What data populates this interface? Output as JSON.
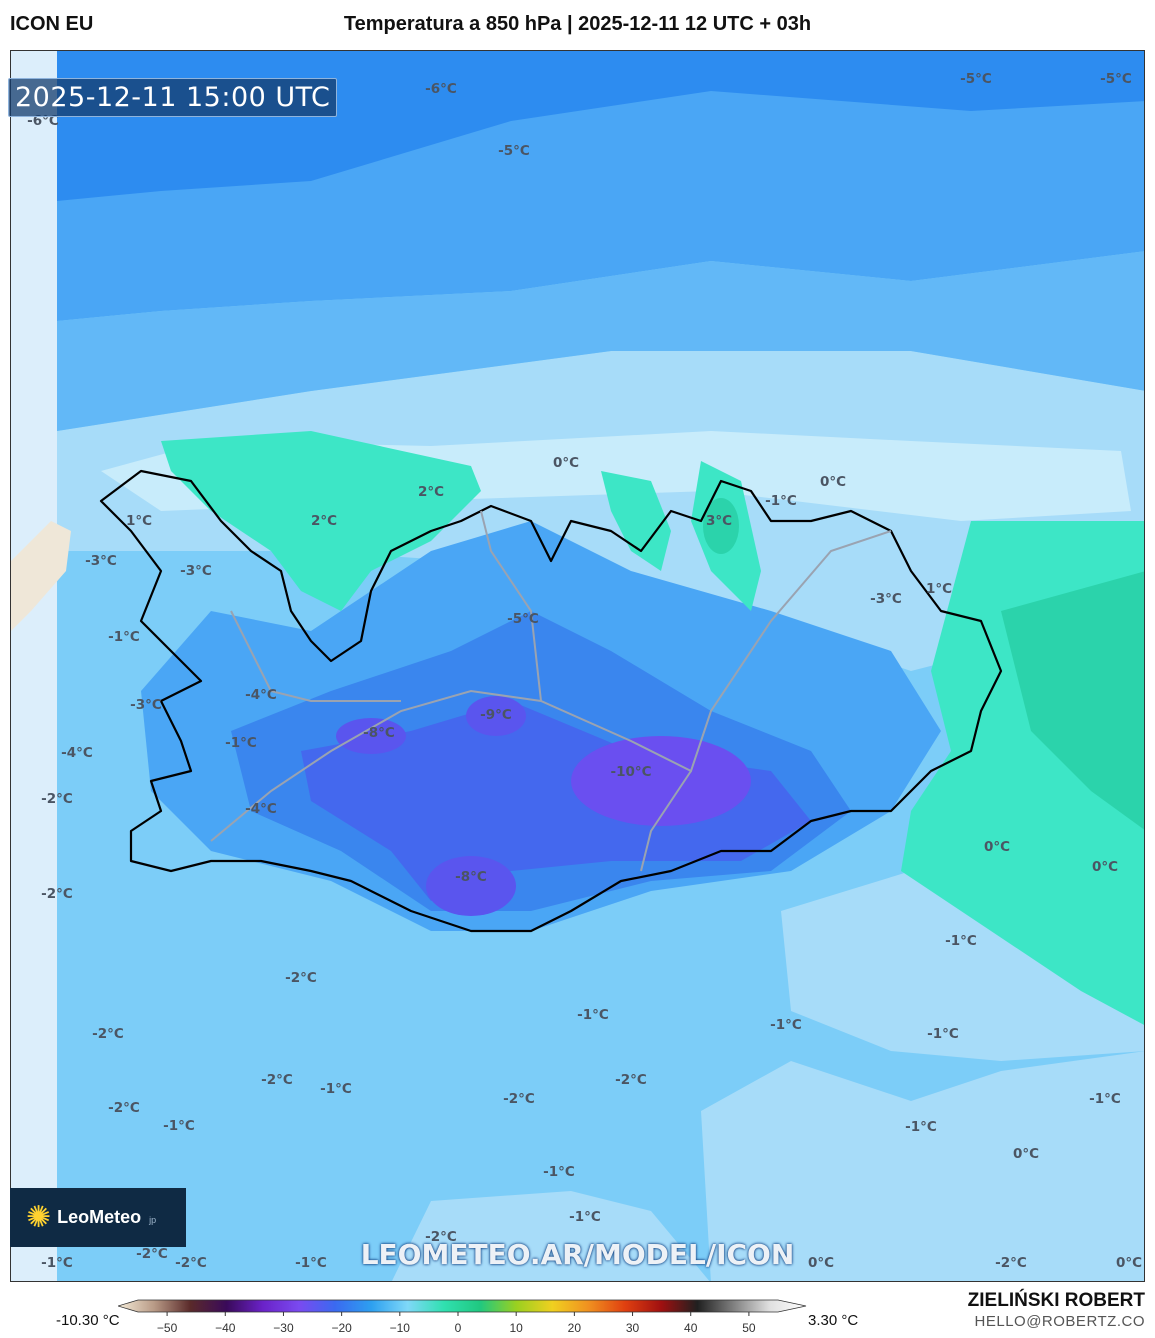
{
  "header": {
    "model": "ICON EU",
    "title": "Temperatura a 850 hPa | 2025-12-11 12 UTC + 03h"
  },
  "map": {
    "valid_time": "2025-12-11 15:00 UTC",
    "watermark": "LEOMETEO.AR/MODEL/ICON",
    "logo_text": "LeoMeteo",
    "logo_sub": "jp",
    "colors": {
      "band_minus6": "#2d8cf0",
      "band_minus5": "#4aa6f5",
      "band_minus2": "#7ccdf8",
      "band_minus1": "#a7dcf9",
      "band_0": "#c8ecfb",
      "band_2": "#3de6c6",
      "band_3": "#2bd3ab",
      "band_minus8": "#5566ee",
      "band_minus10": "#6a4ff0",
      "coast": "#000000",
      "road": "#9aa3b1"
    },
    "labels": [
      {
        "text": "-6°C"
      },
      {
        "text": "-6°C"
      },
      {
        "text": "-5°C"
      },
      {
        "text": "-5°C"
      },
      {
        "text": "-5°C"
      },
      {
        "text": "2°C"
      },
      {
        "text": "2°C"
      },
      {
        "text": "0°C"
      },
      {
        "text": "0°C"
      },
      {
        "text": "-1°C"
      },
      {
        "text": "3°C"
      },
      {
        "text": "1°C"
      },
      {
        "text": "-3°C"
      },
      {
        "text": "-3°C"
      },
      {
        "text": "1°C"
      },
      {
        "text": "-5°C"
      },
      {
        "text": "-3°C"
      },
      {
        "text": "-1°C"
      },
      {
        "text": "-4°C"
      },
      {
        "text": "-3°C"
      },
      {
        "text": "-9°C"
      },
      {
        "text": "-8°C"
      },
      {
        "text": "-4°C"
      },
      {
        "text": "-1°C"
      },
      {
        "text": "-10°C"
      },
      {
        "text": "-2°C"
      },
      {
        "text": "-4°C"
      },
      {
        "text": "0°C"
      },
      {
        "text": "0°C"
      },
      {
        "text": "-8°C"
      },
      {
        "text": "-2°C"
      },
      {
        "text": "-1°C"
      },
      {
        "text": "-2°C"
      },
      {
        "text": "-1°C"
      },
      {
        "text": "-1°C"
      },
      {
        "text": "-1°C"
      },
      {
        "text": "-2°C"
      },
      {
        "text": "-2°C"
      },
      {
        "text": "-1°C"
      },
      {
        "text": "-2°C"
      },
      {
        "text": "-2°C"
      },
      {
        "text": "-2°C"
      },
      {
        "text": "-1°C"
      },
      {
        "text": "-1°C"
      },
      {
        "text": "0°C"
      },
      {
        "text": "-1°C"
      },
      {
        "text": "-1°C"
      },
      {
        "text": "-1°C"
      },
      {
        "text": "-2°C"
      },
      {
        "text": "-2°C"
      },
      {
        "text": "-2°C"
      },
      {
        "text": "-1°C"
      },
      {
        "text": "-1°C"
      },
      {
        "text": "0°C"
      },
      {
        "text": "-2°C"
      },
      {
        "text": "0°C"
      }
    ]
  },
  "legend": {
    "min_label": "-10.30 °C",
    "max_label": "3.30 °C",
    "ticks": [
      "−50",
      "−40",
      "−30",
      "−20",
      "−10",
      "0",
      "10",
      "20",
      "30",
      "40",
      "50"
    ],
    "tick_values": [
      -50,
      -40,
      -30,
      -20,
      -10,
      0,
      10,
      20,
      30,
      40,
      50
    ],
    "range": [
      -55,
      55
    ],
    "gradient": [
      "#f5ecd8",
      "#b89a86",
      "#5a2a2a",
      "#3a0a5a",
      "#6a22c8",
      "#7a4af0",
      "#3a6af0",
      "#2da0f0",
      "#7fd8f8",
      "#30e0b0",
      "#20c880",
      "#9ad020",
      "#f0d020",
      "#f09020",
      "#e04010",
      "#a01010",
      "#202020",
      "#808080",
      "#e0e0e0",
      "#ffffff"
    ]
  },
  "footer": {
    "author": "ZIELIŃSKI ROBERT",
    "email": "HELLO@ROBERTZ.CO"
  }
}
